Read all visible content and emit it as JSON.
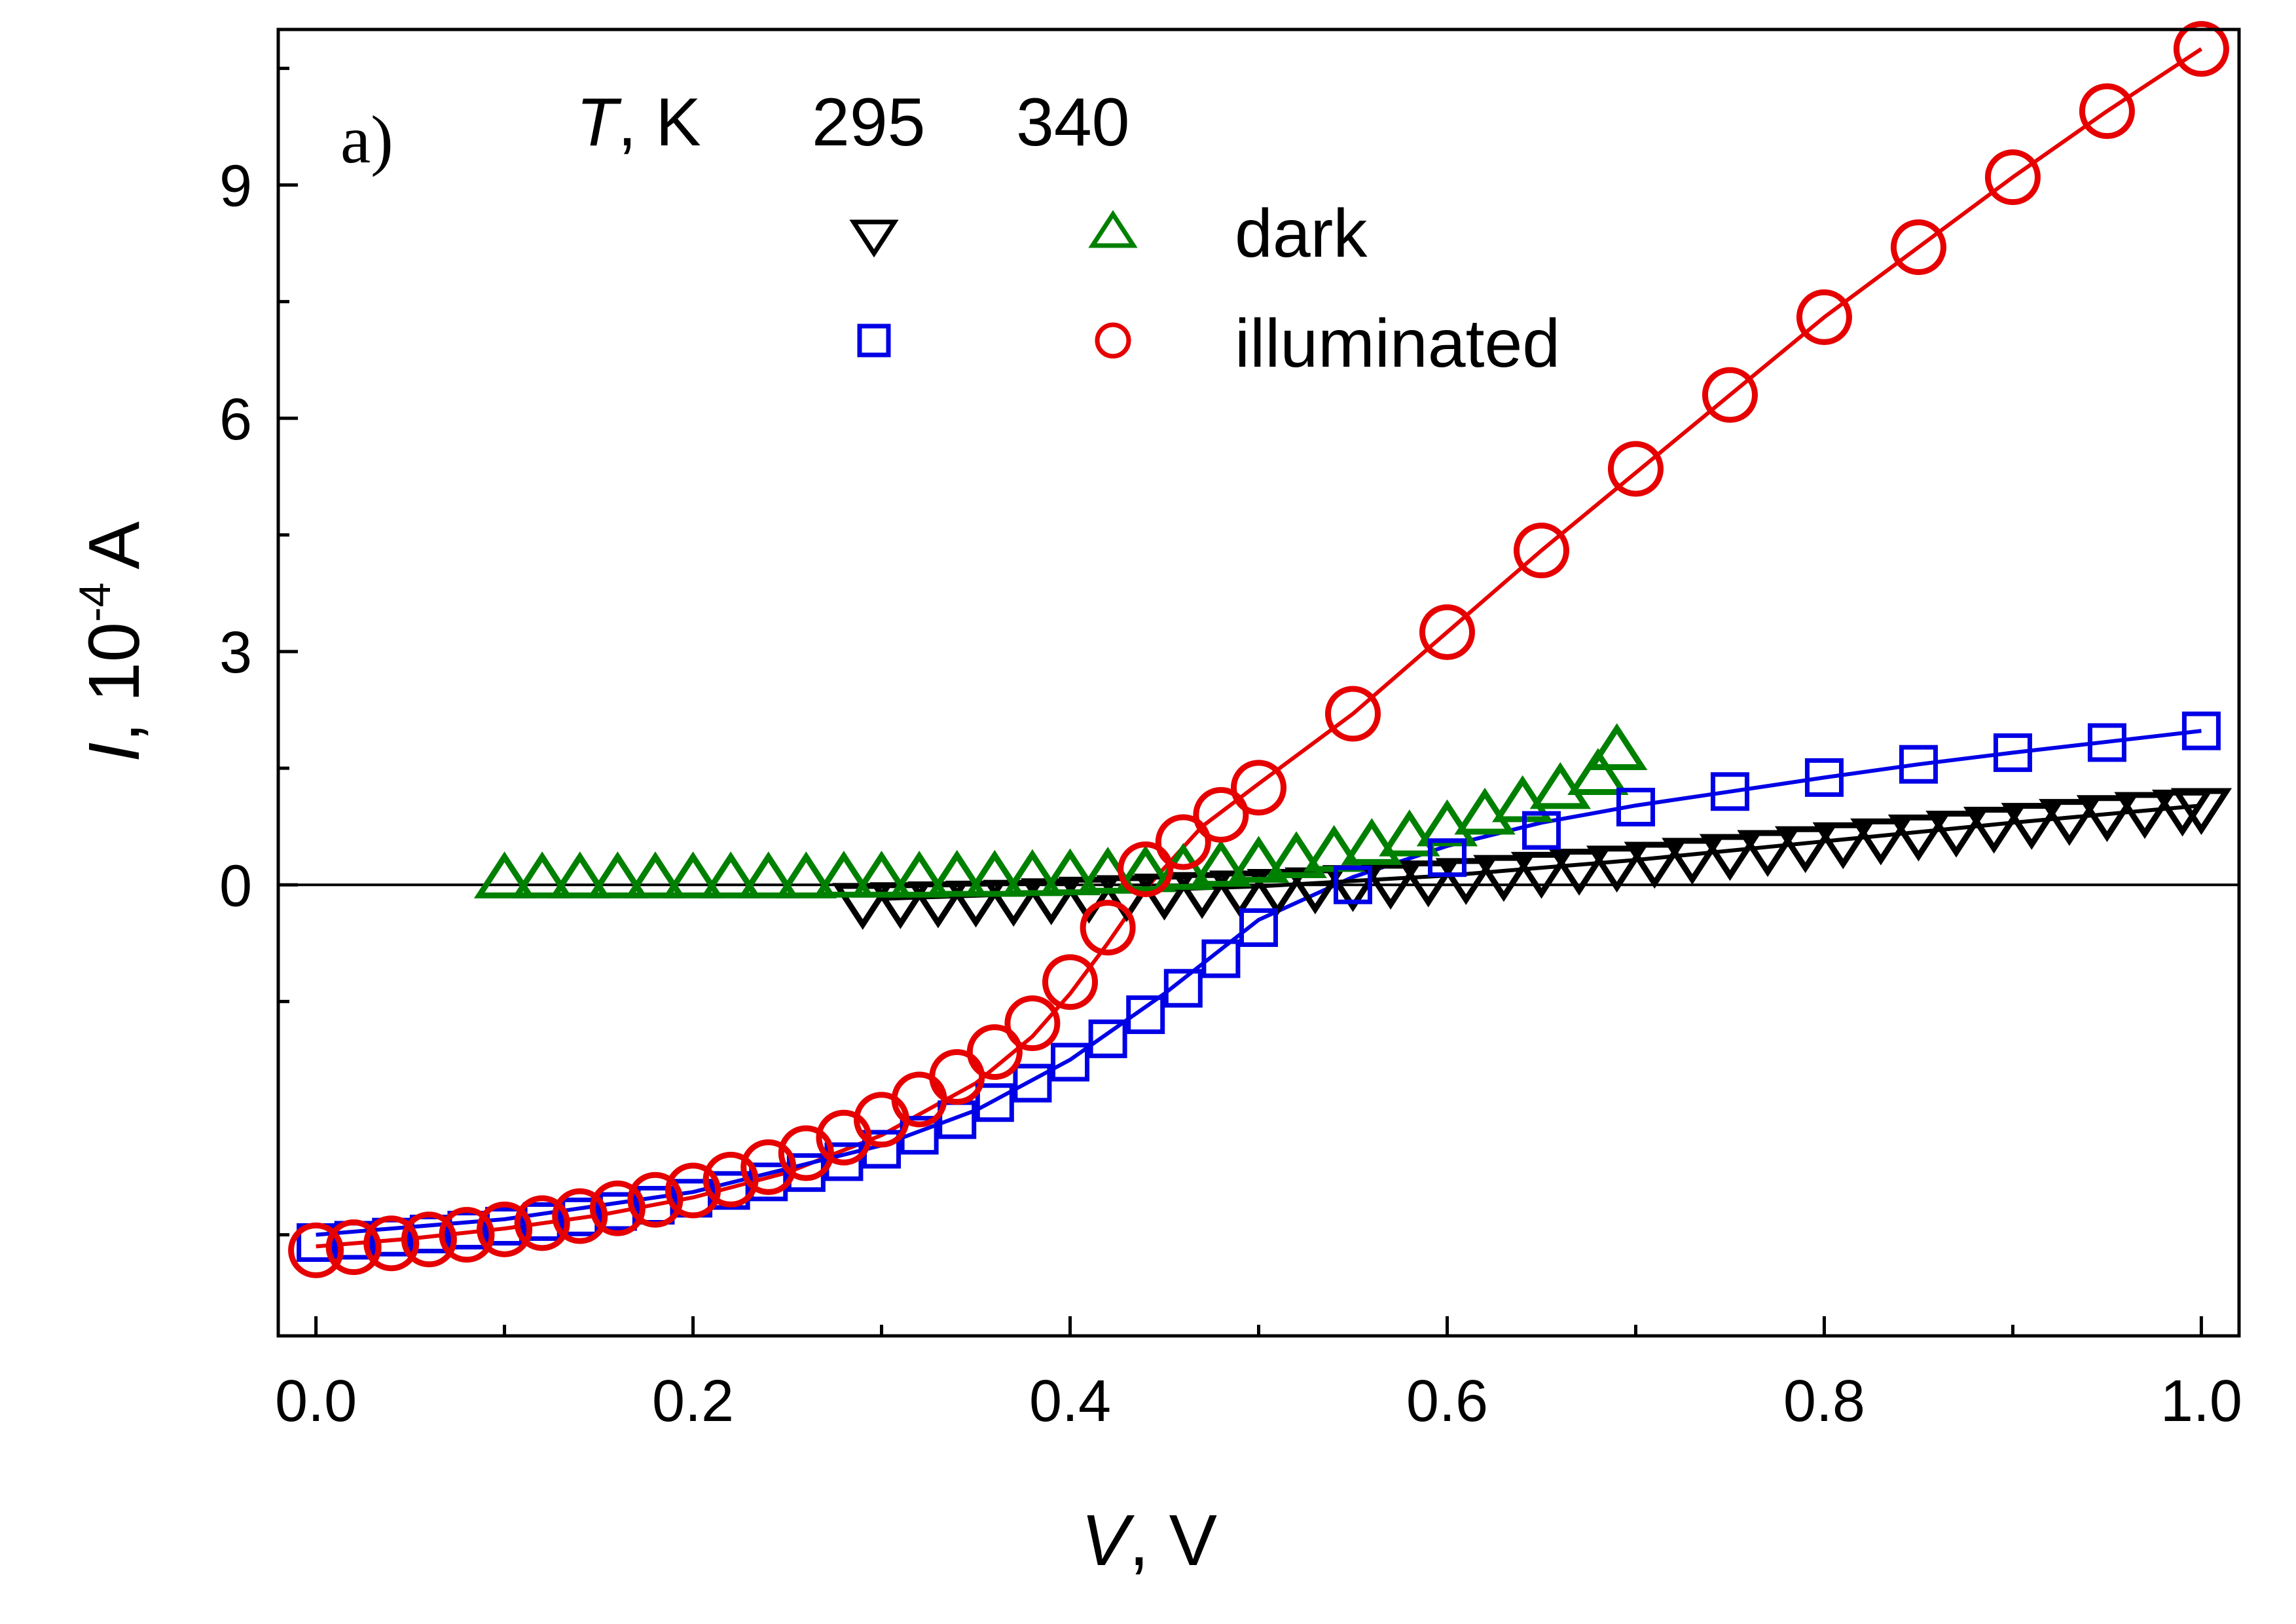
{
  "chart_data": {
    "type": "scatter",
    "panel_label": "a)",
    "xlabel": {
      "var": "V",
      "unit": "V"
    },
    "ylabel": {
      "var": "I",
      "unit_prefix": "10",
      "unit_exp": "-4",
      "unit": "A"
    },
    "xlim": [
      -0.02,
      1.02
    ],
    "ylim": [
      -5.8,
      11.0
    ],
    "xticks": [
      0.0,
      0.2,
      0.4,
      0.6,
      0.8,
      1.0
    ],
    "xtick_labels": [
      "0.0",
      "0.2",
      "0.4",
      "0.6",
      "0.8",
      "1.0"
    ],
    "yticks": [
      0,
      3,
      6,
      9
    ],
    "ytick_labels": [
      "0",
      "3",
      "6",
      "9"
    ],
    "zero_line": true,
    "legend": {
      "placement": "top-center",
      "header_var": "T",
      "header_unit": ", K",
      "temperatures": [
        "295",
        "340"
      ],
      "rows": [
        "dark",
        "illuminated"
      ]
    },
    "series": [
      {
        "id": "dark-295",
        "temperature": "295",
        "condition": "dark",
        "marker": "triangle-down",
        "color": "#000000",
        "x": [
          0.29,
          0.31,
          0.33,
          0.35,
          0.37,
          0.39,
          0.41,
          0.43,
          0.45,
          0.47,
          0.49,
          0.51,
          0.53,
          0.55,
          0.57,
          0.59,
          0.61,
          0.63,
          0.65,
          0.67,
          0.69,
          0.71,
          0.73,
          0.75,
          0.77,
          0.79,
          0.81,
          0.83,
          0.85,
          0.87,
          0.89,
          0.91,
          0.93,
          0.95,
          0.97,
          0.99,
          1.0
        ],
        "y": [
          -0.2,
          -0.19,
          -0.18,
          -0.17,
          -0.16,
          -0.14,
          -0.12,
          -0.1,
          -0.08,
          -0.06,
          -0.04,
          -0.02,
          0.0,
          0.03,
          0.06,
          0.09,
          0.12,
          0.16,
          0.2,
          0.24,
          0.28,
          0.33,
          0.38,
          0.43,
          0.48,
          0.53,
          0.58,
          0.63,
          0.68,
          0.73,
          0.78,
          0.83,
          0.88,
          0.93,
          0.97,
          1.0,
          1.02
        ]
      },
      {
        "id": "dark-340",
        "temperature": "340",
        "condition": "dark",
        "marker": "triangle-up",
        "color": "#008000",
        "x": [
          0.1,
          0.12,
          0.14,
          0.16,
          0.18,
          0.2,
          0.22,
          0.24,
          0.26,
          0.28,
          0.3,
          0.32,
          0.34,
          0.36,
          0.38,
          0.4,
          0.42,
          0.44,
          0.46,
          0.48,
          0.5,
          0.52,
          0.54,
          0.56,
          0.58,
          0.6,
          0.62,
          0.64,
          0.66,
          0.68,
          0.69
        ],
        "y": [
          0.05,
          0.05,
          0.05,
          0.05,
          0.05,
          0.05,
          0.05,
          0.05,
          0.05,
          0.06,
          0.06,
          0.06,
          0.07,
          0.07,
          0.08,
          0.09,
          0.11,
          0.13,
          0.16,
          0.2,
          0.25,
          0.31,
          0.39,
          0.48,
          0.59,
          0.72,
          0.87,
          1.03,
          1.2,
          1.38,
          1.7
        ]
      },
      {
        "id": "illum-295",
        "temperature": "295",
        "condition": "illuminated",
        "marker": "square",
        "color": "#0000e6",
        "x": [
          0.0,
          0.02,
          0.04,
          0.06,
          0.08,
          0.1,
          0.12,
          0.14,
          0.16,
          0.18,
          0.2,
          0.22,
          0.24,
          0.26,
          0.28,
          0.3,
          0.32,
          0.34,
          0.36,
          0.38,
          0.4,
          0.42,
          0.44,
          0.46,
          0.48,
          0.5,
          0.55,
          0.6,
          0.65,
          0.7,
          0.75,
          0.8,
          0.85,
          0.9,
          0.95,
          1.0
        ],
        "y": [
          -4.6,
          -4.57,
          -4.53,
          -4.49,
          -4.44,
          -4.39,
          -4.33,
          -4.27,
          -4.2,
          -4.12,
          -4.03,
          -3.93,
          -3.82,
          -3.7,
          -3.56,
          -3.4,
          -3.22,
          -3.02,
          -2.8,
          -2.55,
          -2.28,
          -1.98,
          -1.67,
          -1.33,
          -0.95,
          -0.55,
          0.0,
          0.35,
          0.7,
          1.0,
          1.2,
          1.38,
          1.55,
          1.7,
          1.83,
          1.98
        ]
      },
      {
        "id": "illum-340",
        "temperature": "340",
        "condition": "illuminated",
        "marker": "circle",
        "color": "#e60000",
        "x": [
          0.0,
          0.02,
          0.04,
          0.06,
          0.08,
          0.1,
          0.12,
          0.14,
          0.16,
          0.18,
          0.2,
          0.22,
          0.24,
          0.26,
          0.28,
          0.3,
          0.32,
          0.34,
          0.36,
          0.38,
          0.4,
          0.42,
          0.44,
          0.46,
          0.48,
          0.5,
          0.55,
          0.6,
          0.65,
          0.7,
          0.75,
          0.8,
          0.85,
          0.9,
          0.95,
          1.0
        ],
        "y": [
          -4.7,
          -4.66,
          -4.61,
          -4.56,
          -4.5,
          -4.43,
          -4.35,
          -4.26,
          -4.16,
          -4.05,
          -3.93,
          -3.79,
          -3.63,
          -3.45,
          -3.25,
          -3.02,
          -2.76,
          -2.47,
          -2.15,
          -1.78,
          -1.25,
          -0.55,
          0.2,
          0.55,
          0.9,
          1.25,
          2.2,
          3.25,
          4.3,
          5.35,
          6.3,
          7.3,
          8.2,
          9.1,
          9.95,
          10.75
        ]
      }
    ],
    "fits": [
      {
        "id": "fit-illum-340",
        "color": "#e60000",
        "x": [
          0.0,
          0.05,
          0.1,
          0.15,
          0.2,
          0.25,
          0.3,
          0.35,
          0.38,
          0.4,
          0.42,
          0.44,
          0.47,
          0.5,
          0.55,
          0.6,
          0.65,
          0.7,
          0.75,
          0.8,
          0.85,
          0.9,
          0.95,
          1.0
        ],
        "y": [
          -4.65,
          -4.55,
          -4.42,
          -4.25,
          -4.02,
          -3.7,
          -3.22,
          -2.55,
          -1.95,
          -1.4,
          -0.75,
          -0.05,
          0.75,
          1.3,
          2.2,
          3.25,
          4.3,
          5.3,
          6.3,
          7.3,
          8.2,
          9.1,
          9.95,
          10.75
        ]
      },
      {
        "id": "fit-illum-295",
        "color": "#0000e6",
        "x": [
          0.0,
          0.1,
          0.2,
          0.3,
          0.35,
          0.4,
          0.45,
          0.5,
          0.55,
          0.6,
          0.65,
          0.7,
          0.75,
          0.8,
          0.85,
          0.9,
          0.95,
          1.0
        ],
        "y": [
          -4.5,
          -4.3,
          -3.95,
          -3.35,
          -2.9,
          -2.25,
          -1.4,
          -0.45,
          0.1,
          0.5,
          0.8,
          1.02,
          1.2,
          1.38,
          1.55,
          1.7,
          1.84,
          1.98
        ]
      },
      {
        "id": "fit-dark-295",
        "color": "#000000",
        "x": [
          0.3,
          0.4,
          0.5,
          0.6,
          0.7,
          0.8,
          0.9,
          1.0
        ],
        "y": [
          -0.18,
          -0.1,
          -0.02,
          0.12,
          0.32,
          0.56,
          0.8,
          1.02
        ]
      }
    ]
  }
}
